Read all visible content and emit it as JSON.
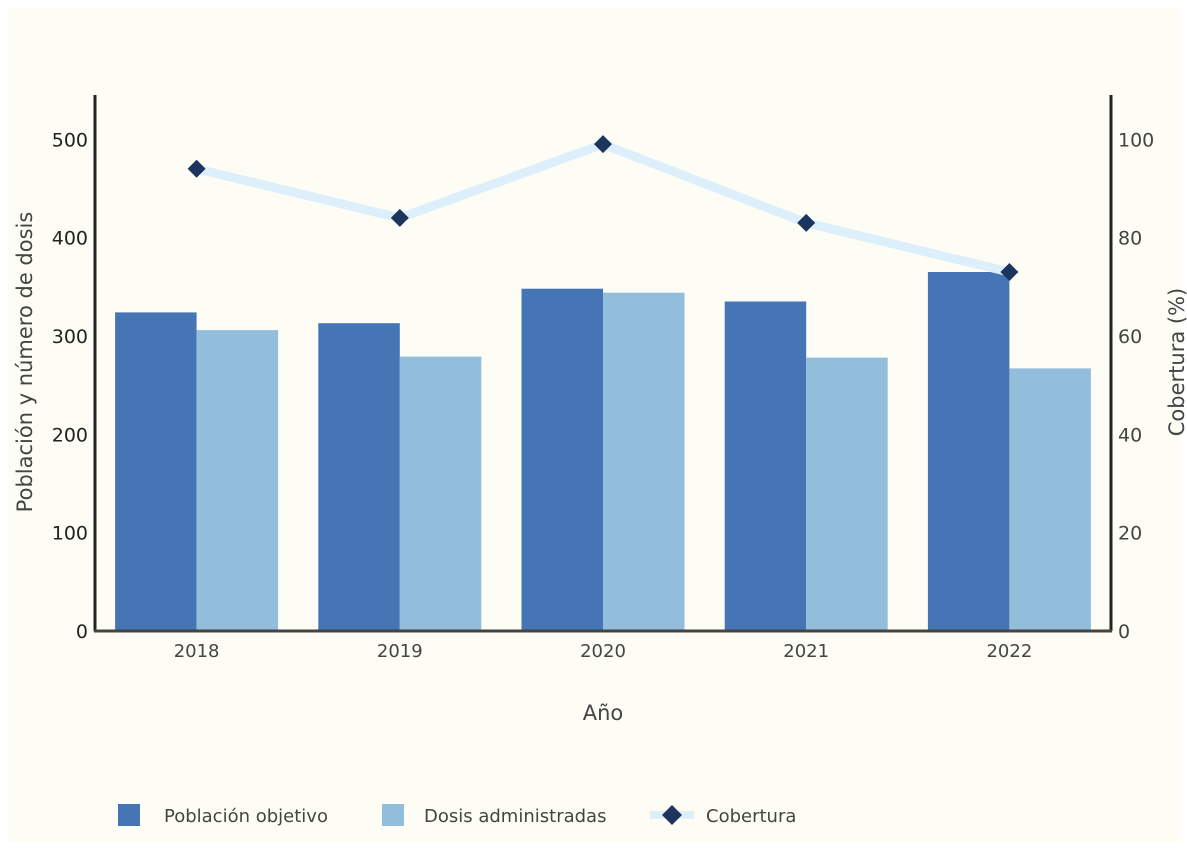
{
  "chart_data": {
    "type": "bar",
    "categories": [
      "2018",
      "2019",
      "2020",
      "2021",
      "2022"
    ],
    "series": [
      {
        "name": "Población objetivo",
        "type": "bar",
        "axis": "left",
        "color": "#4575b4",
        "values": [
          324,
          313,
          348,
          335,
          365
        ]
      },
      {
        "name": "Dosis administradas",
        "type": "bar",
        "axis": "left",
        "color": "#92bddb",
        "values": [
          306,
          279,
          344,
          278,
          267
        ]
      },
      {
        "name": "Cobertura",
        "type": "line",
        "axis": "right",
        "color": "#1c355e",
        "line_color": "#dceffa",
        "marker": "diamond",
        "values": [
          94,
          84,
          99,
          83,
          73
        ]
      }
    ],
    "xlabel": "Año",
    "ylabel": "Población y número de dosis",
    "y2label": "Cobertura (%)",
    "ylim": [
      0,
      545
    ],
    "y2lim": [
      0,
      109
    ],
    "yticks": [
      "0",
      "100",
      "200",
      "300",
      "400",
      "500"
    ],
    "y2ticks": [
      "0",
      "20",
      "40",
      "60",
      "80",
      "100"
    ],
    "grid": false,
    "legend": "bottom-left",
    "background": "#fdfdf6"
  }
}
